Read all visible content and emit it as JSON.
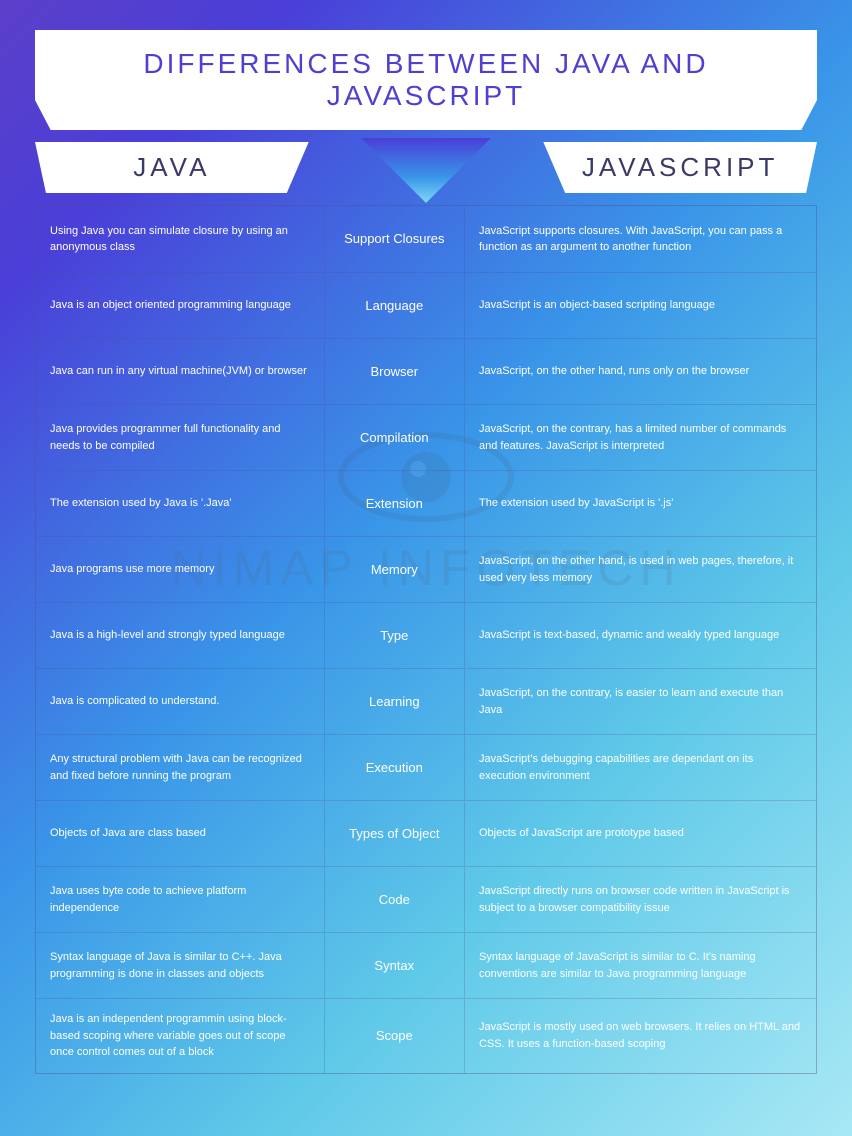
{
  "title": "DIFFERENCES BETWEEN JAVA AND JAVASCRIPT",
  "watermark": "NIMAP INFOTECH",
  "columns": {
    "left": "JAVA",
    "right": "JAVASCRIPT"
  },
  "rows": [
    {
      "category": "Support Closures",
      "java": "Using Java you can simulate closure by using an anonymous class",
      "js": "JavaScript supports closures. With JavaScript, you can pass a function as an argument to another function"
    },
    {
      "category": "Language",
      "java": "Java is an object oriented programming language",
      "js": "JavaScript is an object-based scripting language"
    },
    {
      "category": "Browser",
      "java": "Java can run in any virtual machine(JVM) or browser",
      "js": "JavaScript, on the other hand, runs only on the browser"
    },
    {
      "category": "Compilation",
      "java": "Java provides programmer full functionality and needs to be compiled",
      "js": "JavaScript, on the contrary, has a limited number of commands and features. JavaScript is interpreted"
    },
    {
      "category": "Extension",
      "java": "The extension used by Java is '.Java'",
      "js": "The extension used by JavaScript is '.js'"
    },
    {
      "category": "Memory",
      "java": "Java programs use more memory",
      "js": "JavaScript, on the other hand, is used in web pages, therefore, it used very less memory"
    },
    {
      "category": "Type",
      "java": "Java is a high-level and strongly typed language",
      "js": "JavaScript is text-based, dynamic and weakly typed language"
    },
    {
      "category": "Learning",
      "java": "Java is complicated to understand.",
      "js": "JavaScript, on the contrary, is easier to learn and execute than Java"
    },
    {
      "category": "Execution",
      "java": "Any structural problem with Java can be recognized and fixed before running the program",
      "js": "JavaScript's debugging capabilities are dependant on its execution environment"
    },
    {
      "category": "Types of Object",
      "java": "Objects of Java are class based",
      "js": "Objects of JavaScript are prototype based"
    },
    {
      "category": "Code",
      "java": "Java uses byte code to achieve platform independence",
      "js": "JavaScript directly runs on browser code written in JavaScript is subject to a browser compatibility issue"
    },
    {
      "category": "Syntax",
      "java": "Syntax language of Java is similar to C++. Java programming is done in classes and objects",
      "js": "Syntax language of JavaScript is similar to C. It's naming conventions are similar to Java programming language"
    },
    {
      "category": "Scope",
      "java": "Java is an independent programmin using block-based scoping where variable goes out of scope once control comes out of a block",
      "js": "JavaScript is mostly used on web browsers. It relies on HTML and CSS. It uses a function-based scoping"
    }
  ],
  "style": {
    "title_color": "#5040d0",
    "text_color": "#ffffff",
    "border_color": "rgba(80,80,140,0.4)",
    "banner_bg": "#ffffff",
    "gradient_start": "#5b3fc9",
    "gradient_end": "#a8e8f5"
  }
}
